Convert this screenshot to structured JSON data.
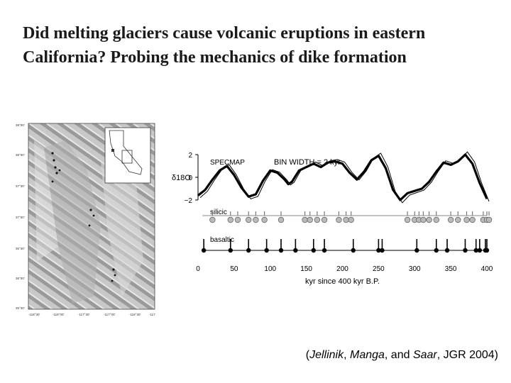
{
  "slide": {
    "title": "Did melting glaciers cause volcanic eruptions in eastern California? Probing the mechanics of dike formation"
  },
  "map": {
    "lat_labels": [
      "38°00'",
      "38°00'",
      "37°30'",
      "37°00'",
      "36°30'",
      "36°00'",
      "35°30'"
    ],
    "lon_labels": [
      "-118°30'",
      "-118°00'",
      "-117°30'",
      "-117°00'",
      "-116°30'",
      "-117"
    ]
  },
  "chart_data": {
    "type": "line",
    "xlabel": "kyr since 400 kyr B.P.",
    "xlim": [
      0,
      400
    ],
    "x_ticks": [
      0,
      50,
      100,
      150,
      200,
      250,
      300,
      350,
      400
    ],
    "y_ticks": [
      2,
      0,
      -2
    ],
    "ylabel": "δ18O",
    "labels": {
      "specmap": "SPECMAP",
      "bin": "BIN WIDTH = 2 kyr",
      "silicic": "silicic",
      "basaltic": "basaltic"
    },
    "series": [
      {
        "name": "SPECMAP",
        "x": [
          0,
          10,
          20,
          30,
          40,
          50,
          60,
          70,
          80,
          90,
          100,
          110,
          120,
          125,
          130,
          140,
          150,
          160,
          170,
          180,
          190,
          200,
          210,
          220,
          230,
          240,
          250,
          260,
          270,
          280,
          290,
          300,
          310,
          320,
          330,
          340,
          350,
          360,
          370,
          380,
          390,
          400
        ],
        "values": [
          -1.6,
          -1.1,
          -0.2,
          0.6,
          1.0,
          0.2,
          -0.9,
          -1.7,
          -1.5,
          -0.3,
          0.6,
          0.4,
          -0.2,
          -0.6,
          -0.4,
          0.6,
          0.9,
          1.2,
          0.9,
          1.3,
          1.4,
          1.2,
          0.4,
          -0.2,
          0.5,
          1.5,
          1.9,
          0.8,
          -1.1,
          -2.0,
          -1.4,
          -1.2,
          -1.0,
          -0.4,
          0.5,
          1.3,
          1.1,
          1.4,
          2.0,
          1.2,
          -0.5,
          -1.9
        ]
      }
    ],
    "silicic_points": [
      20,
      45,
      55,
      70,
      80,
      92,
      115,
      148,
      155,
      165,
      175,
      195,
      205,
      212,
      290,
      300,
      306,
      312,
      320,
      330,
      350,
      360,
      372,
      380,
      395,
      400,
      403
    ],
    "basaltic_points": [
      8,
      45,
      70,
      95,
      115,
      135,
      160,
      175,
      215,
      250,
      255,
      303,
      330,
      345,
      370,
      385,
      390,
      398,
      400
    ]
  },
  "citation": {
    "open": "(",
    "a1": "Jellinik",
    "s1": ", ",
    "a2": "Manga",
    "s2": ", and ",
    "a3": "Saar",
    "rest": ", JGR 2004)"
  }
}
